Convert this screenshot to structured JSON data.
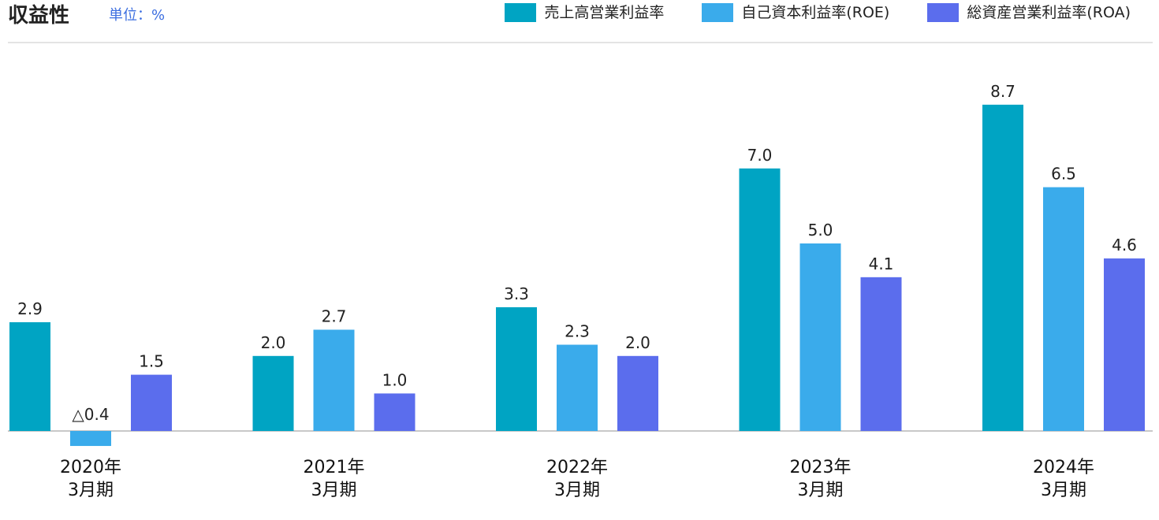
{
  "header": {
    "title": "収益性",
    "unit": "単位：%"
  },
  "chart_data": {
    "type": "bar",
    "title": "収益性",
    "unit_label": "単位：%",
    "categories": [
      [
        "2020年",
        "3月期"
      ],
      [
        "2021年",
        "3月期"
      ],
      [
        "2022年",
        "3月期"
      ],
      [
        "2023年",
        "3月期"
      ],
      [
        "2024年",
        "3月期"
      ]
    ],
    "series": [
      {
        "name": "売上高営業利益率",
        "color": "#00a4c3",
        "values": [
          2.9,
          2.0,
          3.3,
          7.0,
          8.7
        ],
        "labels": [
          "2.9",
          "2.0",
          "3.3",
          "7.0",
          "8.7"
        ]
      },
      {
        "name": "自己資本利益率(ROE)",
        "color": "#3aabeb",
        "values": [
          -0.4,
          2.7,
          2.3,
          5.0,
          6.5
        ],
        "labels": [
          "△0.4",
          "2.7",
          "2.3",
          "5.0",
          "6.5"
        ]
      },
      {
        "name": "総資産営業利益率(ROA)",
        "color": "#5b6ded",
        "values": [
          1.5,
          1.0,
          2.0,
          4.1,
          4.6
        ],
        "labels": [
          "1.5",
          "1.0",
          "2.0",
          "4.1",
          "4.6"
        ]
      }
    ],
    "legend_position": "top-right",
    "grid": false,
    "ylim": [
      -0.4,
      8.7
    ]
  }
}
